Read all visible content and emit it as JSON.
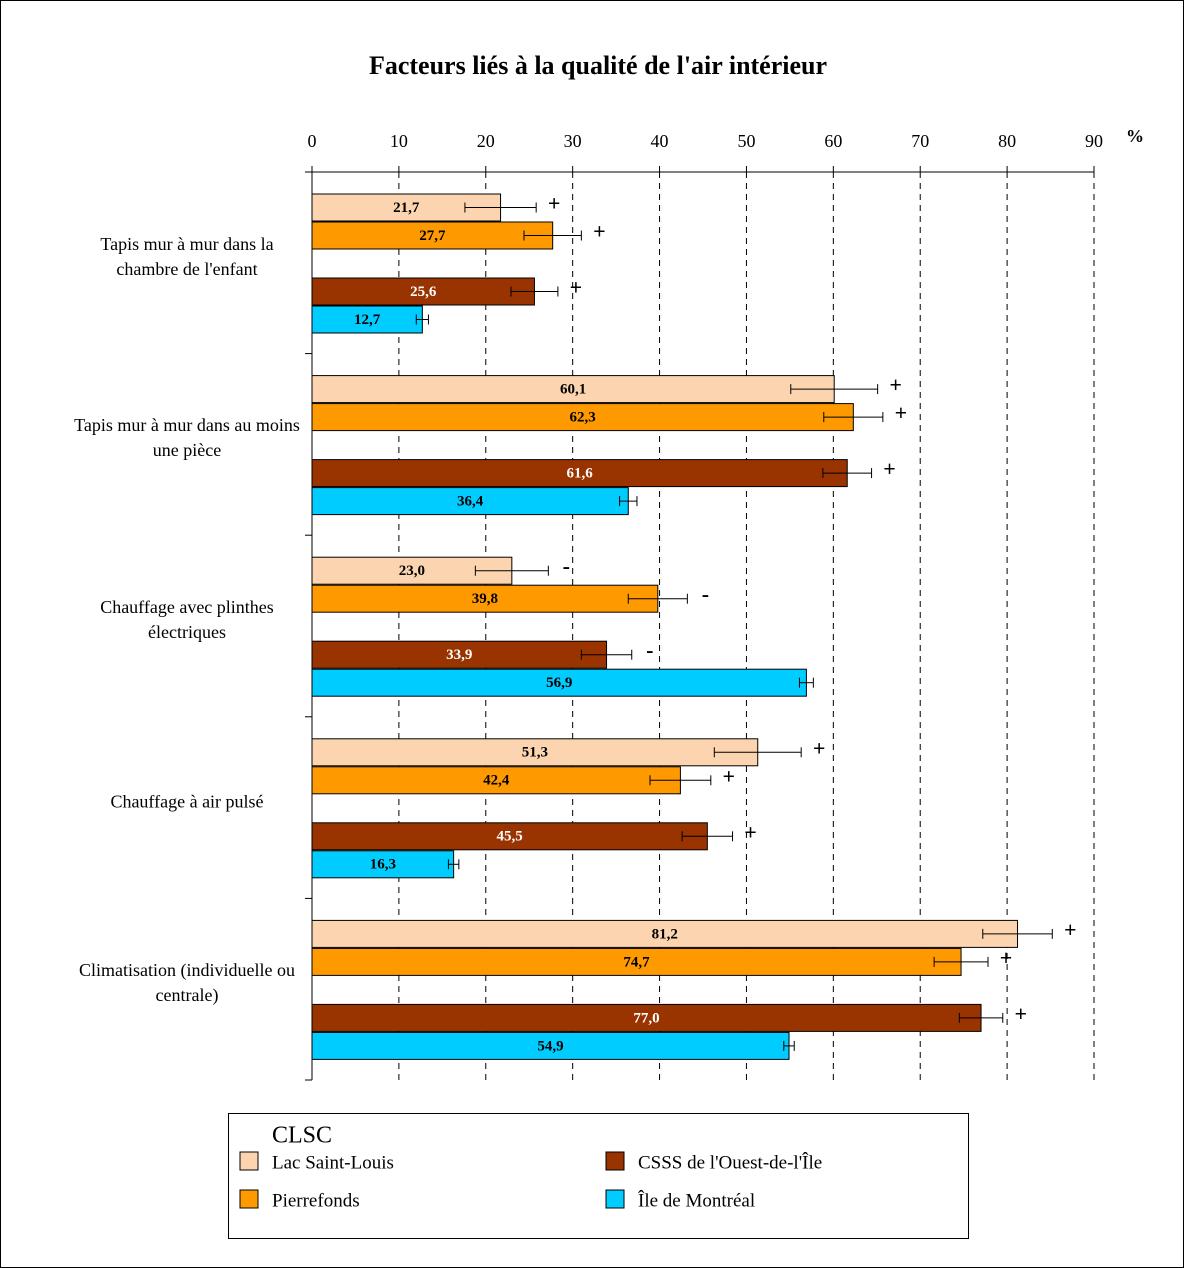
{
  "chart_data": {
    "type": "hbar",
    "title": "Facteurs liés à la qualité de l'air intérieur",
    "axis_unit": "%",
    "categories": [
      "Tapis mur à mur dans la chambre de l'enfant",
      "Tapis mur à mur dans au moins une pièce",
      "Chauffage avec plinthes électriques",
      "Chauffage à air pulsé",
      "Climatisation (individuelle ou centrale)"
    ],
    "xlim": [
      0,
      90
    ],
    "xticks": [
      0,
      10,
      20,
      30,
      40,
      50,
      60,
      70,
      80,
      90
    ],
    "grid": true,
    "legend_title": "CLSC",
    "series": [
      {
        "name": "Lac Saint-Louis",
        "color": "#fcd5b0",
        "label_color": "#000000",
        "values": [
          21.7,
          60.1,
          23.0,
          51.3,
          81.2
        ],
        "value_labels": [
          "21,7",
          "60,1",
          "23,0",
          "51,3",
          "81,2"
        ],
        "errors": [
          4.1,
          5.0,
          4.2,
          5.0,
          4.0
        ],
        "significance": [
          "+",
          "+",
          "-",
          "+",
          "+"
        ]
      },
      {
        "name": "Pierrefonds",
        "color": "#ff9900",
        "label_color": "#000000",
        "values": [
          27.7,
          62.3,
          39.8,
          42.4,
          74.7
        ],
        "value_labels": [
          "27,7",
          "62,3",
          "39,8",
          "42,4",
          "74,7"
        ],
        "errors": [
          3.3,
          3.4,
          3.4,
          3.5,
          3.1
        ],
        "significance": [
          "+",
          "+",
          "-",
          "+",
          "+"
        ]
      },
      {
        "name": "CSSS de l'Ouest-de-l'Île",
        "color": "#993300",
        "label_color": "#ffffff",
        "values": [
          25.6,
          61.6,
          33.9,
          45.5,
          77.0
        ],
        "value_labels": [
          "25,6",
          "61,6",
          "33,9",
          "45,5",
          "77,0"
        ],
        "errors": [
          2.7,
          2.8,
          2.9,
          2.9,
          2.5
        ],
        "significance": [
          "+",
          "+",
          "-",
          "+",
          "+"
        ]
      },
      {
        "name": "Île de Montréal",
        "color": "#00ccff",
        "label_color": "#000000",
        "values": [
          12.7,
          36.4,
          56.9,
          16.3,
          54.9
        ],
        "value_labels": [
          "12,7",
          "36,4",
          "56,9",
          "16,3",
          "54,9"
        ],
        "errors": [
          0.7,
          1.0,
          0.8,
          0.6,
          0.6
        ]
      }
    ]
  }
}
